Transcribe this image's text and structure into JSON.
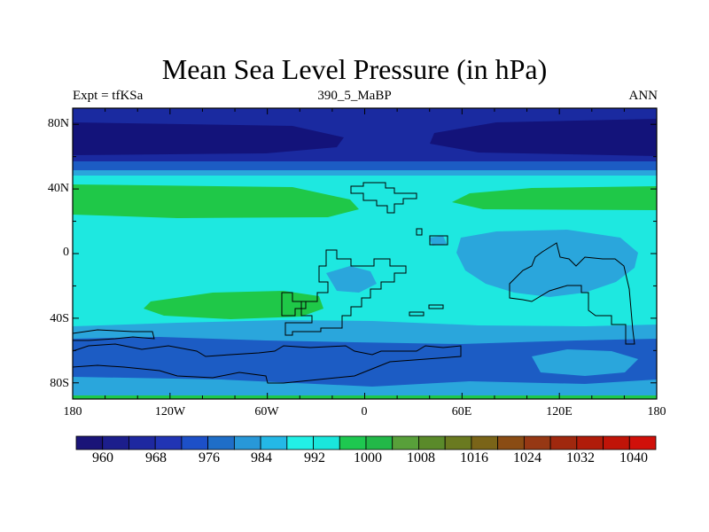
{
  "title": "Mean Sea Level Pressure (in hPa)",
  "subtitle_left": "Expt = tfKSa",
  "subtitle_center": "390_5_MaBP",
  "subtitle_right": "ANN",
  "lat_labels": [
    "80N",
    "40N",
    "0",
    "40S",
    "80S"
  ],
  "lon_labels": [
    "180",
    "120W",
    "60W",
    "0",
    "60E",
    "120E",
    "180"
  ],
  "colorbar": {
    "labels": [
      "960",
      "968",
      "976",
      "984",
      "992",
      "1000",
      "1008",
      "1016",
      "1024",
      "1032",
      "1040"
    ],
    "colors": [
      "#1a1478",
      "#1c1e8c",
      "#1e28a0",
      "#2134b4",
      "#1d50c8",
      "#1f6ec8",
      "#2898d8",
      "#24b8e6",
      "#22f0e6",
      "#1ae6dc",
      "#1ec850",
      "#22b848",
      "#58a03a",
      "#5a8a2a",
      "#6a7a20",
      "#7a6418",
      "#8a4c14",
      "#963814",
      "#a0280e",
      "#b01c0a",
      "#c01408",
      "#d0100a"
    ]
  },
  "colors": {
    "field_base": "#1ee8e0",
    "c960": "#13137a",
    "c976": "#1a2aa0",
    "c984": "#1c5cc4",
    "c992": "#2aa6dc",
    "c1000": "#1ee8e0",
    "c1008": "#1fc848",
    "land_edge": "#000000"
  }
}
